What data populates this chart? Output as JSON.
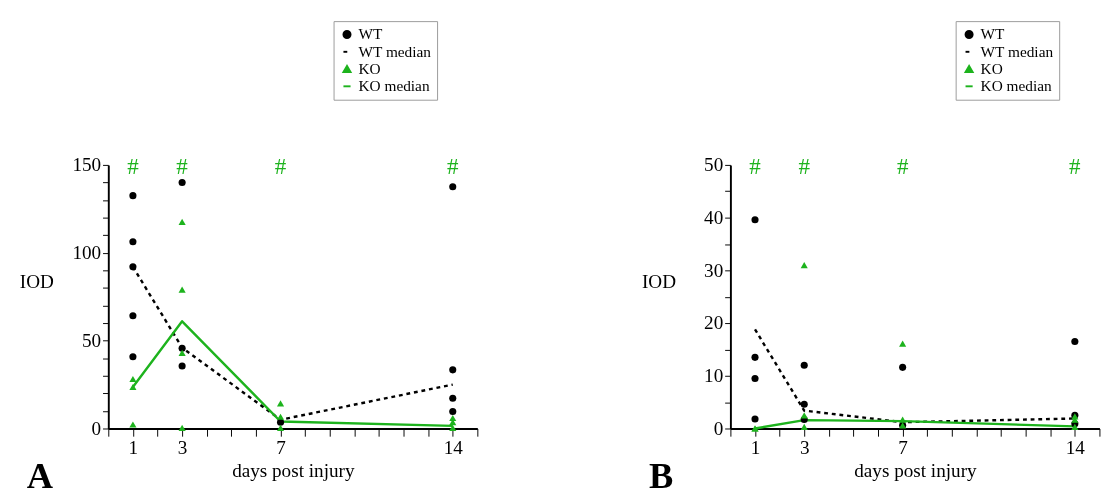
{
  "chart_data": [
    {
      "type": "scatter",
      "xlabel": "days post injury",
      "ylabel": "IOD",
      "xlim": [
        0,
        15
      ],
      "ylim": [
        0,
        150
      ],
      "xticks": [
        {
          "value": 0,
          "label": null
        },
        "1",
        {
          "value": 2,
          "label": null
        },
        3,
        {
          "value": 4,
          "label": null
        },
        {
          "value": 5,
          "label": null
        },
        {
          "value": 6,
          "label": null
        },
        7,
        {
          "value": 8,
          "label": null
        },
        {
          "value": 9,
          "label": null
        },
        {
          "value": 10,
          "label": null
        },
        {
          "value": 11,
          "label": null
        },
        {
          "value": 12,
          "label": null
        },
        {
          "value": 13,
          "label": null
        },
        14,
        {
          "value": 15,
          "label": null
        }
      ],
      "yticks": [
        0,
        {
          "value": 10,
          "label": null
        },
        {
          "value": 20,
          "label": null
        },
        {
          "value": 30,
          "label": null
        },
        {
          "value": 40,
          "label": null
        },
        50,
        {
          "value": 60,
          "label": null
        },
        {
          "value": 70,
          "label": null
        },
        {
          "value": 80,
          "label": null
        },
        {
          "value": 90,
          "label": null
        },
        100,
        {
          "value": 110,
          "label": null
        },
        {
          "value": 120,
          "label": null
        },
        {
          "value": 130,
          "label": null
        },
        {
          "value": 140,
          "label": null
        },
        150
      ],
      "grid": false,
      "legend": "top right",
      "series": [
        {
          "name": "WT",
          "type": "scatter",
          "marker": "circle",
          "color": "#000000",
          "x": [
            1,
            1,
            1,
            1,
            1,
            3,
            3,
            3,
            7,
            14,
            14,
            14,
            14
          ],
          "values": [
            132.5,
            106.3,
            92,
            64.2,
            40.8,
            140,
            45.7,
            35.6,
            3.6,
            137.6,
            33.4,
            17.2,
            9.7
          ]
        },
        {
          "name": "WT median",
          "type": "line",
          "line_style": "dashed",
          "color": "#000000",
          "x": [
            1,
            3,
            7,
            14
          ],
          "values": [
            92,
            46,
            5,
            25
          ]
        },
        {
          "name": "KO",
          "type": "scatter",
          "marker": "triangle",
          "color": "#1db31d",
          "x": [
            1,
            1,
            1,
            3,
            3,
            3,
            3,
            7,
            7,
            7,
            14,
            14,
            14
          ],
          "values": [
            28.2,
            23.6,
            2.3,
            117.6,
            79,
            43,
            0.4,
            14.3,
            6.7,
            0.4,
            6,
            3.6,
            0.4
          ]
        },
        {
          "name": "KO median",
          "type": "line",
          "line_style": "solid",
          "color": "#1db31d",
          "x": [
            1,
            3,
            7,
            14
          ],
          "values": [
            23.6,
            61,
            4,
            1.5
          ]
        }
      ],
      "annotations": [
        "#",
        "#",
        "#",
        "#",
        "A"
      ]
    },
    {
      "type": "scatter",
      "xlabel": "days post injury",
      "ylabel": "IOD",
      "xlim": [
        0,
        15
      ],
      "ylim": [
        0,
        50
      ],
      "xticks": [
        {
          "value": 0,
          "label": null
        },
        "1",
        {
          "value": 2,
          "label": null
        },
        3,
        {
          "value": 4,
          "label": null
        },
        {
          "value": 5,
          "label": null
        },
        {
          "value": 6,
          "label": null
        },
        7,
        {
          "value": 8,
          "label": null
        },
        {
          "value": 9,
          "label": null
        },
        {
          "value": 10,
          "label": null
        },
        {
          "value": 11,
          "label": null
        },
        {
          "value": 12,
          "label": null
        },
        {
          "value": 13,
          "label": null
        },
        14,
        {
          "value": 15,
          "label": null
        }
      ],
      "yticks": [
        0,
        {
          "value": 5,
          "label": null
        },
        10,
        {
          "value": 15,
          "label": null
        },
        20,
        {
          "value": 25,
          "label": null
        },
        30,
        {
          "value": 35,
          "label": null
        },
        40,
        {
          "value": 45,
          "label": null
        },
        50
      ],
      "grid": false,
      "legend": "top right",
      "series": [
        {
          "name": "WT",
          "type": "scatter",
          "marker": "circle",
          "color": "#000000",
          "x": [
            1,
            1,
            1,
            1,
            3,
            3,
            3,
            7,
            7,
            14,
            14,
            14
          ],
          "values": [
            39.6,
            13.5,
            9.5,
            1.8,
            12,
            4.6,
            1.7,
            11.6,
            0.6,
            16.5,
            2.5,
            0.9
          ]
        },
        {
          "name": "WT median",
          "type": "line",
          "line_style": "dashed",
          "color": "#000000",
          "x": [
            1,
            3,
            7,
            14
          ],
          "values": [
            18.8,
            3.4,
            1.2,
            1.9
          ]
        },
        {
          "name": "KO",
          "type": "scatter",
          "marker": "triangle",
          "color": "#1db31d",
          "x": [
            1,
            1,
            3,
            3,
            3,
            7,
            7,
            7,
            14,
            14,
            14
          ],
          "values": [
            0,
            0,
            31,
            2.5,
            0.3,
            16.1,
            1.7,
            0.6,
            2.3,
            1.7,
            0.3
          ]
        },
        {
          "name": "KO median",
          "type": "line",
          "line_style": "solid",
          "color": "#1db31d",
          "x": [
            1,
            3,
            7,
            14
          ],
          "values": [
            0,
            1.6,
            1.4,
            0.4
          ]
        }
      ],
      "annotations": [
        "#",
        "#",
        "#",
        "#",
        "B"
      ]
    }
  ]
}
